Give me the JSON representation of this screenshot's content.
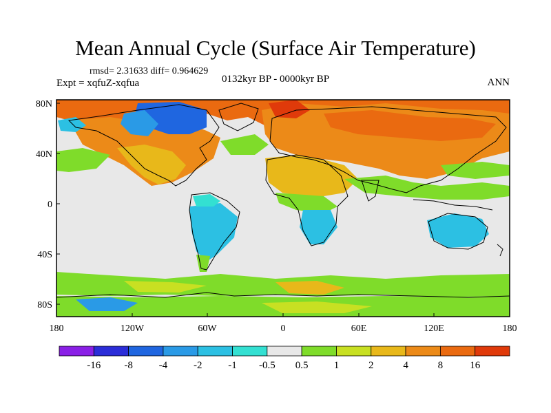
{
  "title": "Mean Annual Cycle (Surface Air Temperature)",
  "stats_text": "rmsd= 2.31633 diff= 0.964629",
  "experiment_text": "Expt = xqfuZ-xqfua",
  "period_text": "0132kyr BP - 0000kyr BP",
  "season_text": "ANN",
  "x_ticks": [
    "180",
    "120W",
    "60W",
    "0",
    "60E",
    "120E",
    "180"
  ],
  "y_ticks": [
    "80N",
    "40N",
    "0",
    "40S",
    "80S"
  ],
  "colorbar": {
    "labels": [
      "-16",
      "-8",
      "-4",
      "-2",
      "-1",
      "-0.5",
      "0.5",
      "1",
      "2",
      "4",
      "8",
      "16"
    ],
    "colors": [
      "#8a1fe6",
      "#2b2dd8",
      "#1f66e0",
      "#2a9ae6",
      "#2cc0e3",
      "#33e0d2",
      "#e8e8e8",
      "#7fdc2a",
      "#c8e022",
      "#e8b81a",
      "#ec8a18",
      "#ea6a10",
      "#e03a0a"
    ]
  },
  "map_colors": {
    "background": "#e8e8e8",
    "green": "#7fdc2a",
    "lime": "#c8e022",
    "yellow": "#e8b81a",
    "orange": "#ec8a18",
    "deep_orange": "#ea6a10",
    "red": "#e03a0a",
    "cyan": "#33e0d2",
    "light_blue": "#2cc0e3",
    "blue": "#2a9ae6",
    "mid_blue": "#1f66e0",
    "dark_blue": "#2b2dd8"
  }
}
